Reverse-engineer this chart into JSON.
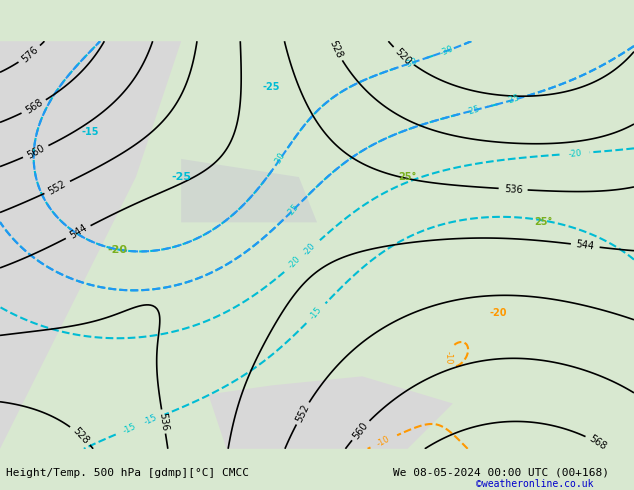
{
  "title_left": "Height/Temp. 500 hPa [gdmp][°C] CMCC",
  "title_right": "We 08-05-2024 00:00 UTC (00+168)",
  "credit": "©weatheronline.co.uk",
  "bg_color": "#e8e8e8",
  "land_color": "#c8c8c8",
  "sea_color": "#d0e8d0",
  "green_land_color": "#b8d8a0",
  "figsize": [
    6.34,
    4.9
  ],
  "dpi": 100
}
